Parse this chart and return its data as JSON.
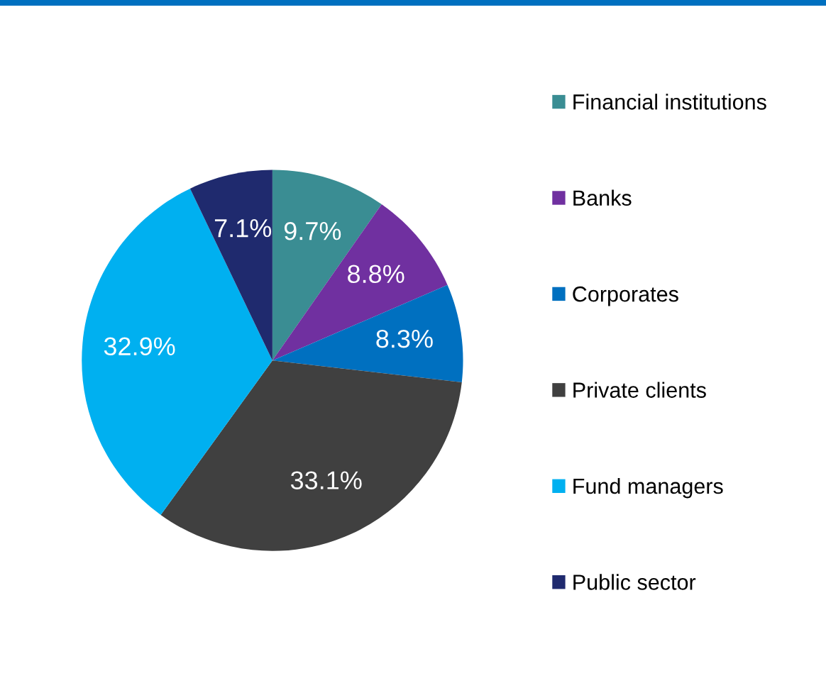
{
  "chart_data": {
    "type": "pie",
    "categories": [
      "Financial institutions",
      "Banks",
      "Corporates",
      "Private clients",
      "Fund managers",
      "Public sector"
    ],
    "values": [
      9.7,
      8.8,
      8.3,
      33.1,
      32.9,
      7.1
    ],
    "colors": [
      "#3a8d93",
      "#7030a0",
      "#0070c0",
      "#404040",
      "#00b0f0",
      "#1f2a6e"
    ],
    "value_labels": [
      "9.7%",
      "8.8%",
      "8.3%",
      "33.1%",
      "32.9%",
      "7.1%"
    ],
    "legend": "right"
  }
}
